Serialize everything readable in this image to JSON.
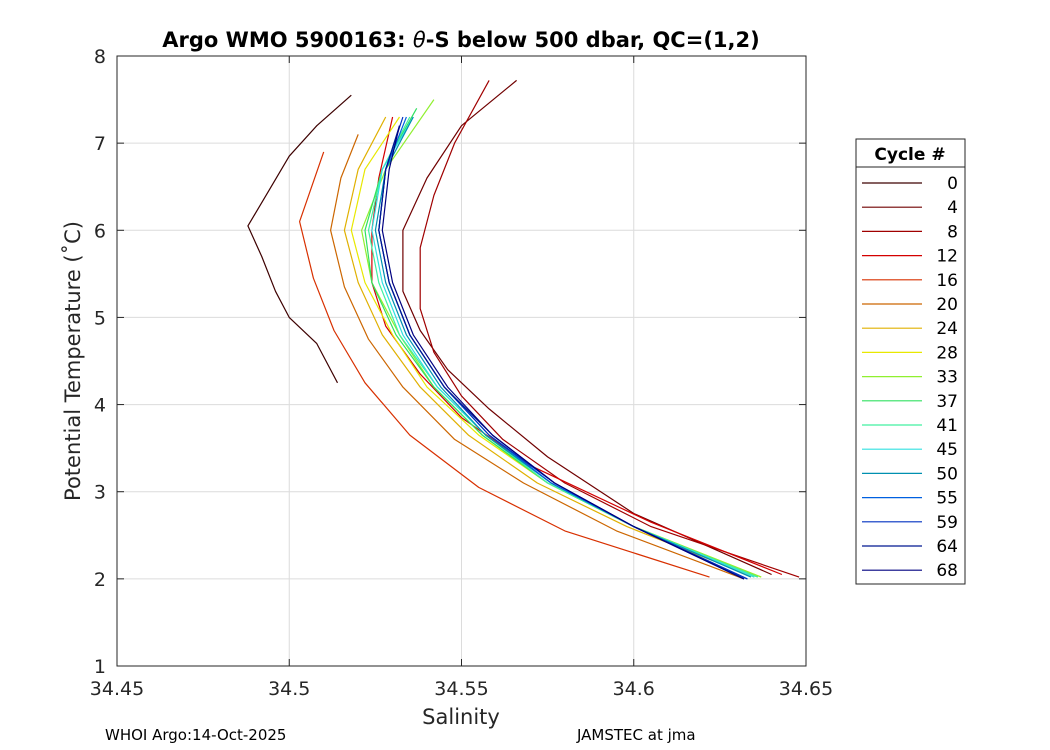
{
  "chart_data": {
    "type": "line",
    "title": "Argo WMO 5900163: θ-S below 500 dbar,  QC=(1,2)",
    "title_parts": {
      "before": "Argo WMO 5900163: ",
      "theta": "θ",
      "after": "-S below 500 dbar,  QC=(1,2)"
    },
    "xlabel": "Salinity",
    "ylabel": "Potential Temperature (˚C)",
    "xlim": [
      34.45,
      34.65
    ],
    "ylim": [
      1,
      8
    ],
    "x_ticks": [
      "34.45",
      "34.5",
      "34.55",
      "34.6",
      "34.65"
    ],
    "y_ticks": [
      "1",
      "2",
      "3",
      "4",
      "5",
      "6",
      "7",
      "8"
    ],
    "grid": true,
    "legend": {
      "title": "Cycle #",
      "placement": "right-outside",
      "entries": [
        "0",
        "4",
        "8",
        "12",
        "16",
        "20",
        "24",
        "28",
        "33",
        "37",
        "41",
        "45",
        "50",
        "55",
        "59",
        "64",
        "68"
      ],
      "colors": [
        "#3d0000",
        "#700000",
        "#a00000",
        "#d40000",
        "#d83000",
        "#cc6600",
        "#e0b000",
        "#e8e800",
        "#90f030",
        "#30e060",
        "#40f0a0",
        "#30e0e0",
        "#0090b0",
        "#0060e0",
        "#0030c0",
        "#001890",
        "#000080"
      ]
    },
    "series": [
      {
        "name": "0",
        "color": "#3d0000",
        "x": [
          34.514,
          34.508,
          34.5,
          34.496,
          34.492,
          34.488,
          34.494,
          34.5,
          34.508,
          34.518
        ],
        "y": [
          4.25,
          4.7,
          5.0,
          5.3,
          5.7,
          6.05,
          6.45,
          6.85,
          7.2,
          7.55
        ]
      },
      {
        "name": "4",
        "color": "#700000",
        "x": [
          34.64,
          34.6,
          34.575,
          34.558,
          34.546,
          34.538,
          34.533,
          34.533,
          34.54,
          34.55,
          34.566
        ],
        "y": [
          2.05,
          2.75,
          3.4,
          3.95,
          4.4,
          4.85,
          5.3,
          6.0,
          6.6,
          7.2,
          7.72
        ]
      },
      {
        "name": "8",
        "color": "#a00000",
        "x": [
          34.648,
          34.605,
          34.58,
          34.562,
          34.55,
          34.542,
          34.538,
          34.538,
          34.542,
          34.548,
          34.558
        ],
        "y": [
          2.02,
          2.6,
          3.1,
          3.6,
          4.1,
          4.6,
          5.1,
          5.8,
          6.4,
          7.0,
          7.72
        ]
      },
      {
        "name": "12",
        "color": "#d40000",
        "x": [
          34.643,
          34.605,
          34.57,
          34.55,
          34.538,
          34.528,
          34.524,
          34.524,
          34.526,
          34.53
        ],
        "y": [
          2.05,
          2.65,
          3.3,
          3.85,
          4.35,
          4.9,
          5.4,
          6.0,
          6.6,
          7.3
        ]
      },
      {
        "name": "16",
        "color": "#d83000",
        "x": [
          34.622,
          34.58,
          34.555,
          34.535,
          34.522,
          34.513,
          34.507,
          34.503,
          34.51
        ],
        "y": [
          2.02,
          2.55,
          3.05,
          3.65,
          4.25,
          4.85,
          5.45,
          6.1,
          6.9
        ]
      },
      {
        "name": "20",
        "color": "#cc6600",
        "x": [
          34.632,
          34.595,
          34.568,
          34.548,
          34.533,
          34.523,
          34.516,
          34.512,
          34.515,
          34.52
        ],
        "y": [
          2.0,
          2.55,
          3.1,
          3.6,
          4.2,
          4.75,
          5.35,
          6.0,
          6.6,
          7.1
        ]
      },
      {
        "name": "24",
        "color": "#e0b000",
        "x": [
          34.635,
          34.598,
          34.572,
          34.552,
          34.538,
          34.527,
          34.52,
          34.516,
          34.52,
          34.528
        ],
        "y": [
          2.02,
          2.6,
          3.1,
          3.65,
          4.2,
          4.8,
          5.4,
          6.0,
          6.7,
          7.3
        ]
      },
      {
        "name": "28",
        "color": "#e8e800",
        "x": [
          34.637,
          34.6,
          34.575,
          34.555,
          34.54,
          34.53,
          34.522,
          34.518,
          34.522,
          34.532
        ],
        "y": [
          2.02,
          2.6,
          3.1,
          3.65,
          4.2,
          4.8,
          5.4,
          6.0,
          6.7,
          7.3
        ]
      },
      {
        "name": "33",
        "color": "#90f030",
        "x": [
          34.637,
          34.6,
          34.575,
          34.556,
          34.542,
          34.532,
          34.524,
          34.521,
          34.528,
          34.542
        ],
        "y": [
          2.02,
          2.6,
          3.1,
          3.65,
          4.2,
          4.8,
          5.4,
          6.0,
          6.7,
          7.5
        ]
      },
      {
        "name": "37",
        "color": "#30e060",
        "x": [
          34.636,
          34.6,
          34.575,
          34.556,
          34.542,
          34.531,
          34.524,
          34.522,
          34.527,
          34.537
        ],
        "y": [
          2.02,
          2.6,
          3.1,
          3.65,
          4.2,
          4.8,
          5.4,
          6.0,
          6.7,
          7.4
        ]
      },
      {
        "name": "41",
        "color": "#40f0a0",
        "x": [
          34.636,
          34.6,
          34.575,
          34.557,
          34.543,
          34.532,
          34.526,
          34.523,
          34.527,
          34.535
        ],
        "y": [
          2.02,
          2.6,
          3.1,
          3.65,
          4.2,
          4.8,
          5.4,
          6.0,
          6.7,
          7.3
        ]
      },
      {
        "name": "45",
        "color": "#30e0e0",
        "x": [
          34.635,
          34.6,
          34.576,
          34.557,
          34.543,
          34.533,
          34.527,
          34.524,
          34.527,
          34.536
        ],
        "y": [
          2.02,
          2.6,
          3.1,
          3.65,
          4.2,
          4.8,
          5.4,
          6.0,
          6.7,
          7.3
        ]
      },
      {
        "name": "50",
        "color": "#0090b0",
        "x": [
          34.634,
          34.6,
          34.576,
          34.557,
          34.544,
          34.534,
          34.528,
          34.525,
          34.528,
          34.536
        ],
        "y": [
          2.02,
          2.6,
          3.1,
          3.65,
          4.2,
          4.8,
          5.4,
          6.0,
          6.7,
          7.3
        ]
      },
      {
        "name": "55",
        "color": "#0060e0",
        "x": [
          34.633,
          34.6,
          34.576,
          34.558,
          34.545,
          34.535,
          34.529,
          34.526,
          34.528,
          34.534
        ],
        "y": [
          2.0,
          2.6,
          3.1,
          3.65,
          4.2,
          4.8,
          5.4,
          6.0,
          6.7,
          7.3
        ]
      },
      {
        "name": "59",
        "color": "#0030c0",
        "x": [
          34.633,
          34.6,
          34.577,
          34.558,
          34.545,
          34.535,
          34.529,
          34.526,
          34.528,
          34.533
        ],
        "y": [
          2.0,
          2.6,
          3.1,
          3.65,
          4.2,
          4.8,
          5.4,
          6.0,
          6.7,
          7.3
        ]
      },
      {
        "name": "64",
        "color": "#001890",
        "x": [
          34.632,
          34.6,
          34.577,
          34.559,
          34.545,
          34.535,
          34.529,
          34.526,
          34.528,
          34.532
        ],
        "y": [
          2.0,
          2.6,
          3.1,
          3.65,
          4.2,
          4.8,
          5.4,
          6.0,
          6.7,
          7.2
        ]
      },
      {
        "name": "68",
        "color": "#000080",
        "x": [
          34.632,
          34.6,
          34.577,
          34.559,
          34.546,
          34.536,
          34.53,
          34.527,
          34.529,
          34.532
        ],
        "y": [
          2.0,
          2.6,
          3.1,
          3.65,
          4.2,
          4.8,
          5.4,
          6.0,
          6.7,
          7.2
        ]
      }
    ]
  },
  "footer": {
    "left": "WHOI Argo:14-Oct-2025",
    "right": "JAMSTEC at jma"
  }
}
